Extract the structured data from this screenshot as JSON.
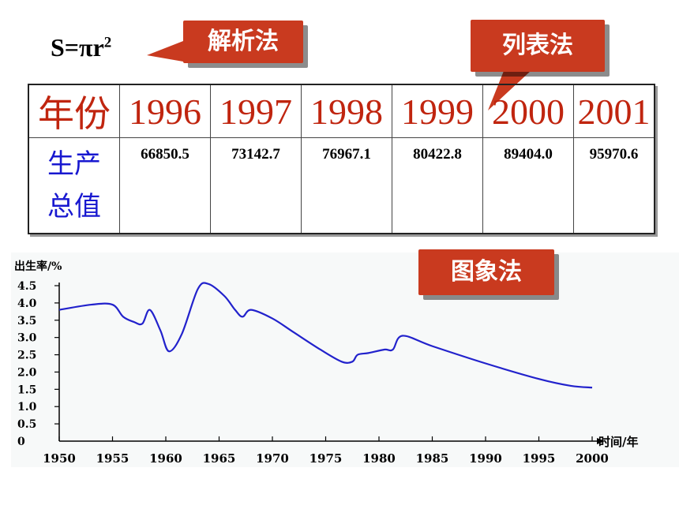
{
  "formula": {
    "lhs": "S=πr",
    "exp": "2"
  },
  "callouts": {
    "analytic": "解析法",
    "table": "列表法",
    "graph": "图象法"
  },
  "table": {
    "header_label": "年份",
    "years": [
      "1996",
      "1997",
      "1998",
      "1999",
      "2000",
      "2001"
    ],
    "row_label_1": "生产",
    "row_label_2": "总值",
    "values": [
      "66850.5",
      "73142.7",
      "76967.1",
      "80422.8",
      "89404.0",
      "95970.6"
    ]
  },
  "chart_data": {
    "type": "line",
    "ylabel": "出生率/%",
    "xlabel": "时间/年",
    "x_ticks": [
      "1950",
      "1955",
      "1960",
      "1965",
      "1970",
      "1975",
      "1980",
      "1985",
      "1990",
      "1995",
      "2000"
    ],
    "y_ticks": [
      "0",
      "0.5",
      "1.0",
      "1.5",
      "2.0",
      "2.5",
      "3.0",
      "3.5",
      "4.0",
      "4.5"
    ],
    "xlim": [
      1950,
      2000
    ],
    "ylim": [
      0,
      4.5
    ],
    "line_color": "#2222cc",
    "x": [
      1950,
      1953,
      1955,
      1956,
      1957,
      1957.8,
      1958.5,
      1959.5,
      1960.3,
      1961.5,
      1963,
      1964,
      1965.5,
      1966.5,
      1967.2,
      1968,
      1970,
      1972,
      1974.5,
      1976.5,
      1977.5,
      1978,
      1979,
      1980.5,
      1981.3,
      1982.2,
      1985,
      1990,
      1995,
      1998,
      2000
    ],
    "y": [
      3.8,
      3.95,
      3.95,
      3.6,
      3.45,
      3.4,
      3.8,
      3.2,
      2.6,
      3.1,
      4.4,
      4.55,
      4.2,
      3.8,
      3.6,
      3.8,
      3.55,
      3.15,
      2.65,
      2.3,
      2.3,
      2.5,
      2.55,
      2.65,
      2.65,
      3.05,
      2.75,
      2.25,
      1.8,
      1.6,
      1.55
    ]
  }
}
